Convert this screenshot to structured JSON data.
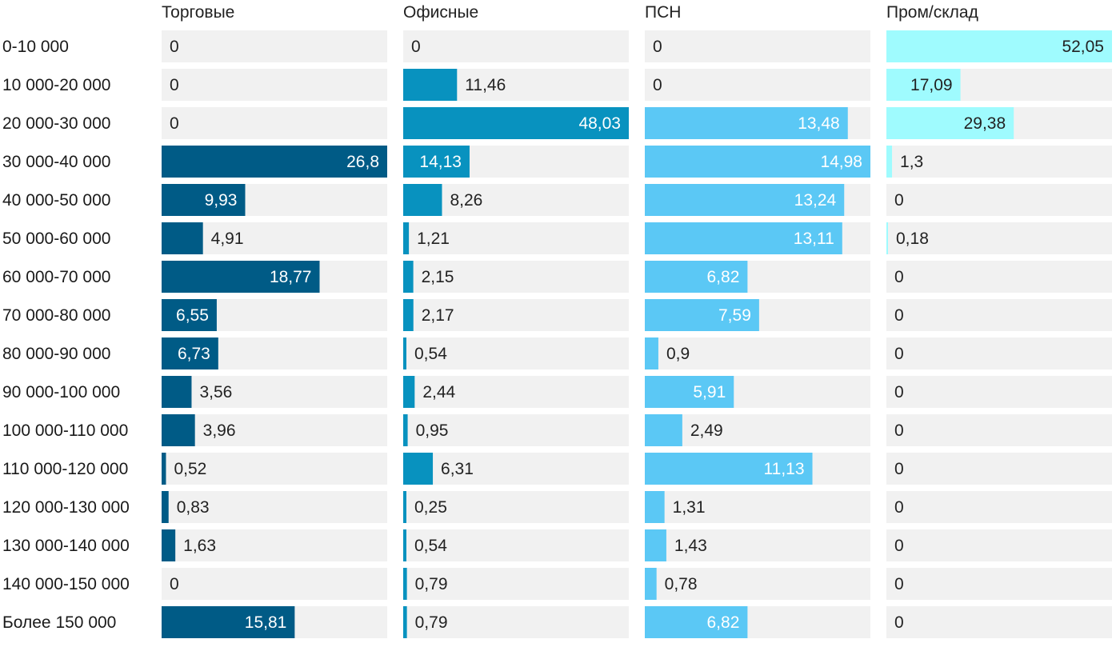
{
  "chart_data": {
    "type": "bar",
    "orientation": "horizontal",
    "categories": [
      "0-10 000",
      "10 000-20 000",
      "20 000-30 000",
      "30 000-40 000",
      "40 000-50 000",
      "50 000-60 000",
      "60 000-70 000",
      "70 000-80 000",
      "80 000-90 000",
      "90 000-100 000",
      "100 000-110 000",
      "110 000-120 000",
      "120 000-130 000",
      "130 000-140 000",
      "140 000-150 000",
      "Более 150 000"
    ],
    "series": [
      {
        "name": "Торговые",
        "color": "#005b86",
        "max": 26.8,
        "values": [
          0,
          0,
          0,
          26.8,
          9.93,
          4.91,
          18.77,
          6.55,
          6.73,
          3.56,
          3.96,
          0.52,
          0.83,
          1.63,
          0,
          15.81
        ],
        "labels": [
          "0",
          "0",
          "0",
          "26,8",
          "9,93",
          "4,91",
          "18,77",
          "6,55",
          "6,73",
          "3,56",
          "3,96",
          "0,52",
          "0,83",
          "1,63",
          "0",
          "15,81"
        ]
      },
      {
        "name": "Офисные",
        "color": "#0892bf",
        "max": 48.03,
        "values": [
          0,
          11.46,
          48.03,
          14.13,
          8.26,
          1.21,
          2.15,
          2.17,
          0.54,
          2.44,
          0.95,
          6.31,
          0.25,
          0.54,
          0.79,
          0.79
        ],
        "labels": [
          "0",
          "11,46",
          "48,03",
          "14,13",
          "8,26",
          "1,21",
          "2,15",
          "2,17",
          "0,54",
          "2,44",
          "0,95",
          "6,31",
          "0,25",
          "0,54",
          "0,79",
          "0,79"
        ]
      },
      {
        "name": "ПСН",
        "color": "#5bc8f5",
        "max": 14.98,
        "values": [
          0,
          0,
          13.48,
          14.98,
          13.24,
          13.11,
          6.82,
          7.59,
          0.9,
          5.91,
          2.49,
          11.13,
          1.31,
          1.43,
          0.78,
          6.82
        ],
        "labels": [
          "0",
          "0",
          "13,48",
          "14,98",
          "13,24",
          "13,11",
          "6,82",
          "7,59",
          "0,9",
          "5,91",
          "2,49",
          "11,13",
          "1,31",
          "1,43",
          "0,78",
          "6,82"
        ]
      },
      {
        "name": "Пром/склад",
        "color": "#9ffbfe",
        "max": 52.05,
        "values": [
          52.05,
          17.09,
          29.38,
          1.3,
          0,
          0.18,
          0,
          0,
          0,
          0,
          0,
          0,
          0,
          0,
          0,
          0
        ],
        "labels": [
          "52,05",
          "17,09",
          "29,38",
          "1,3",
          "0",
          "0,18",
          "0",
          "0",
          "0",
          "0",
          "0",
          "0",
          "0",
          "0",
          "0",
          "0"
        ]
      }
    ],
    "colors": {
      "track": "#f1f1f1",
      "text_dark": "#222222",
      "text_light": "#ffffff"
    }
  }
}
